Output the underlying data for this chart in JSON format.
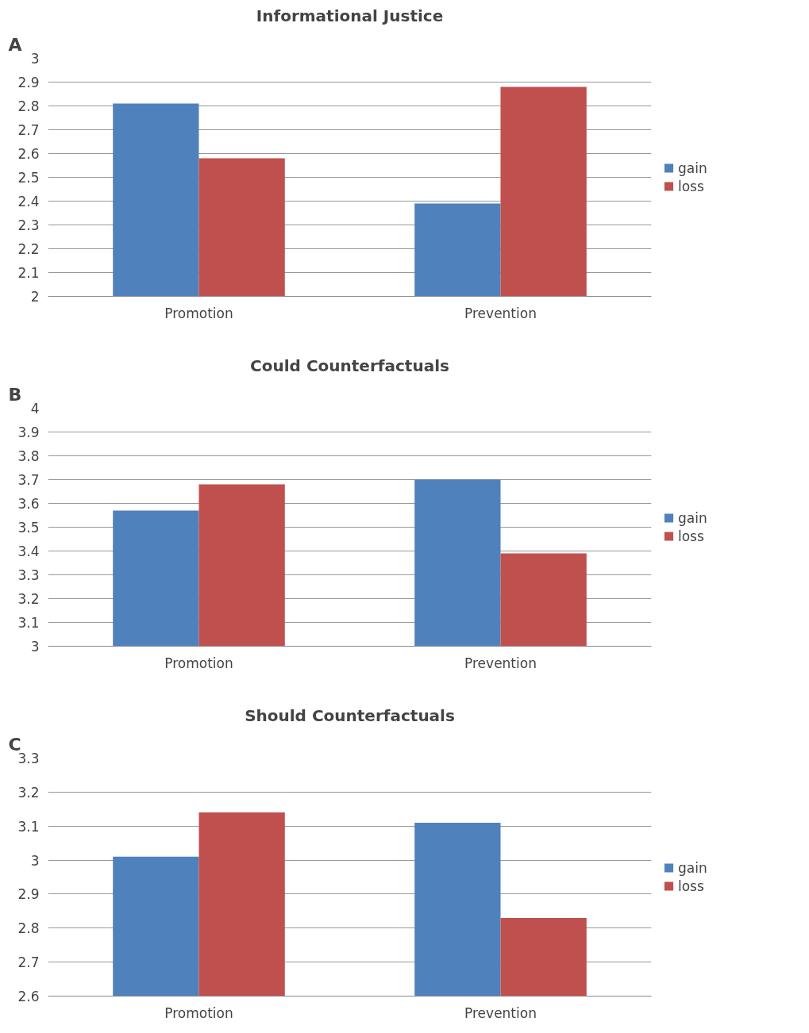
{
  "chart_data": [
    {
      "type": "bar",
      "title": "Informational Justice",
      "categories": [
        "Promotion",
        "Prevention"
      ],
      "series": [
        {
          "name": "gain",
          "color": "#4f81bd",
          "values": [
            2.81,
            2.39
          ]
        },
        {
          "name": "loss",
          "color": "#c0504d",
          "values": [
            2.58,
            2.88
          ]
        }
      ],
      "ylim": [
        2,
        3
      ],
      "yticks": [
        2,
        2.1,
        2.2,
        2.3,
        2.4,
        2.5,
        2.6,
        2.7,
        2.8,
        2.9,
        3
      ],
      "grid": "y",
      "legend": "right",
      "annotations": [
        "A"
      ]
    },
    {
      "type": "bar",
      "title": "Could Counterfactuals",
      "categories": [
        "Promotion",
        "Prevention"
      ],
      "series": [
        {
          "name": "gain",
          "color": "#4f81bd",
          "values": [
            3.57,
            3.7
          ]
        },
        {
          "name": "loss",
          "color": "#c0504d",
          "values": [
            3.68,
            3.39
          ]
        }
      ],
      "ylim": [
        3,
        4
      ],
      "yticks": [
        3,
        3.1,
        3.2,
        3.3,
        3.4,
        3.5,
        3.6,
        3.7,
        3.8,
        3.9,
        4
      ],
      "grid": "y",
      "legend": "right",
      "annotations": [
        "B"
      ]
    },
    {
      "type": "bar",
      "title": "Should Counterfactuals",
      "categories": [
        "Promotion",
        "Prevention"
      ],
      "series": [
        {
          "name": "gain",
          "color": "#4f81bd",
          "values": [
            3.01,
            3.11
          ]
        },
        {
          "name": "loss",
          "color": "#c0504d",
          "values": [
            3.14,
            2.83
          ]
        }
      ],
      "ylim": [
        2.6,
        3.3
      ],
      "yticks": [
        2.6,
        2.7,
        2.8,
        2.9,
        3,
        3.1,
        3.2,
        3.3
      ],
      "grid": "y",
      "legend": "right",
      "annotations": [
        "C"
      ]
    }
  ]
}
